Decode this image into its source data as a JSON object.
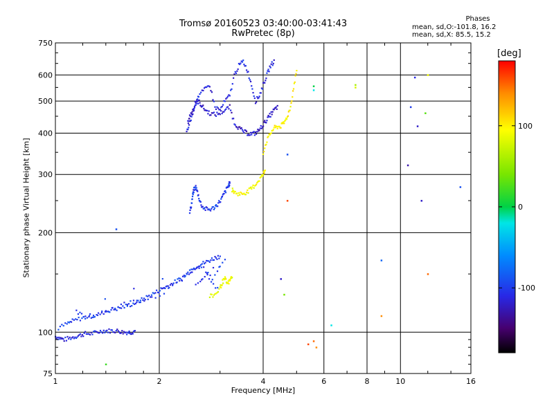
{
  "chart_data": {
    "type": "scatter",
    "title": "Tromsø 20160523 03:40:00-03:41:43",
    "subtitle": "RwPretec (8p)",
    "xlabel": "Frequency [MHz]",
    "ylabel": "Stationary phase Virtual Height [km]",
    "x_scale": "log2",
    "y_scale": "log",
    "xlim": [
      1,
      16
    ],
    "ylim": [
      75,
      750
    ],
    "x_ticks": [
      "1",
      "2",
      "4",
      "6",
      "8",
      "10",
      "16"
    ],
    "x_tick_values": [
      1,
      2,
      4,
      6,
      8,
      10,
      16
    ],
    "y_ticks": [
      "75",
      "100",
      "200",
      "300",
      "400",
      "500",
      "600",
      "750"
    ],
    "y_tick_values": [
      75,
      100,
      200,
      300,
      400,
      500,
      600,
      750
    ],
    "grid": true,
    "legend": {
      "title": "Phases",
      "lines": [
        "mean, sd,O:-101.8, 16.2",
        "mean, sd,X:  85.5, 15.2"
      ],
      "position": "top-right"
    },
    "colorbar": {
      "label": "[deg]",
      "ticks": [
        "100",
        "0",
        "-100"
      ],
      "tick_values": [
        100,
        0,
        -100
      ],
      "range": [
        -180,
        180
      ],
      "colormap": "rainbow"
    },
    "series": [
      {
        "trace": "low-E",
        "phase": -110,
        "x": [
          1.0,
          1.03,
          1.06,
          1.1,
          1.14,
          1.18,
          1.22,
          1.27,
          1.32,
          1.37,
          1.42,
          1.47,
          1.52,
          1.57,
          1.62,
          1.66,
          1.7
        ],
        "y": [
          97,
          96,
          95,
          96,
          97,
          98,
          99,
          99,
          100,
          101,
          101,
          101,
          101,
          100,
          100,
          100,
          101
        ]
      },
      {
        "trace": "E-scatter",
        "phase": -100,
        "x": [
          1.02,
          1.08,
          1.12,
          1.18,
          1.25,
          1.3,
          1.38,
          1.45,
          1.52,
          1.6,
          1.68,
          1.75,
          1.82,
          1.9,
          1.98,
          2.05,
          2.12,
          2.2,
          2.3,
          2.4,
          2.5,
          2.6,
          2.7,
          2.8,
          2.9,
          3.0,
          1.15,
          1.22,
          1.4,
          1.55,
          1.72,
          1.95,
          2.25,
          2.45,
          2.65,
          2.85,
          3.1,
          2.55,
          2.75,
          2.95
        ],
        "y": [
          103,
          106,
          108,
          110,
          112,
          112,
          115,
          117,
          118,
          120,
          122,
          124,
          127,
          130,
          133,
          136,
          138,
          141,
          145,
          150,
          155,
          160,
          162,
          165,
          168,
          170,
          115,
          111,
          116,
          121,
          125,
          128,
          140,
          152,
          158,
          145,
          165,
          140,
          150,
          135
        ]
      },
      {
        "trace": "F1-lower",
        "phase": -100,
        "x": [
          2.45,
          2.48,
          2.5,
          2.52,
          2.55,
          2.58,
          2.62,
          2.66,
          2.72,
          2.8,
          2.88,
          2.95,
          3.02,
          3.08,
          3.14,
          3.18,
          3.2
        ],
        "y": [
          230,
          245,
          260,
          270,
          275,
          265,
          250,
          240,
          236,
          235,
          238,
          244,
          252,
          262,
          272,
          279,
          283
        ]
      },
      {
        "trace": "F1-upper",
        "phase": -120,
        "x": [
          2.42,
          2.45,
          2.5,
          2.55,
          2.6,
          2.65,
          2.72,
          2.8,
          2.9,
          3.0,
          3.1,
          3.2,
          3.3,
          3.4,
          3.5,
          3.6,
          3.7,
          3.8,
          3.9,
          4.0,
          4.1,
          4.2,
          4.3,
          4.4
        ],
        "y": [
          430,
          450,
          470,
          490,
          500,
          485,
          470,
          460,
          455,
          460,
          470,
          480,
          430,
          415,
          405,
          400,
          398,
          400,
          410,
          425,
          440,
          455,
          470,
          480
        ]
      },
      {
        "trace": "F2-o",
        "phase": -110,
        "x": [
          2.4,
          2.45,
          2.5,
          2.55,
          2.6,
          2.7,
          2.8,
          2.9,
          3.0,
          3.1,
          3.2,
          3.3,
          3.4,
          3.5,
          3.6,
          3.7,
          3.8,
          3.9,
          4.0,
          4.1,
          4.2,
          4.3
        ],
        "y": [
          400,
          430,
          460,
          500,
          520,
          540,
          560,
          480,
          470,
          500,
          520,
          600,
          640,
          660,
          620,
          560,
          500,
          520,
          560,
          600,
          640,
          660
        ]
      },
      {
        "trace": "F-lower-x",
        "phase": 95,
        "x": [
          3.25,
          3.3,
          3.4,
          3.5,
          3.6,
          3.7,
          3.8,
          3.9,
          4.0,
          4.05
        ],
        "y": [
          270,
          265,
          262,
          263,
          266,
          272,
          280,
          290,
          300,
          310
        ]
      },
      {
        "trace": "F-upper-x",
        "phase": 100,
        "x": [
          4.0,
          4.1,
          4.2,
          4.3,
          4.4,
          4.5,
          4.6,
          4.7,
          4.8,
          4.9,
          5.0
        ],
        "y": [
          350,
          380,
          400,
          415,
          418,
          420,
          430,
          450,
          480,
          550,
          620
        ]
      },
      {
        "trace": "E-x",
        "phase": 90,
        "x": [
          2.8,
          2.9,
          3.0,
          3.05,
          3.1,
          3.15,
          3.2,
          3.25
        ],
        "y": [
          128,
          130,
          136,
          142,
          145,
          140,
          143,
          148
        ]
      },
      {
        "trace": "scattered",
        "phase": 0,
        "x": [
          1.5,
          1.4,
          5.4,
          5.6,
          5.7,
          6.3,
          7.4,
          7.4,
          8.8,
          8.8,
          10.5,
          10.7,
          11.0,
          11.2,
          11.5,
          11.8,
          12.0,
          12.0,
          14.9,
          5.6,
          5.6,
          4.7,
          4.5,
          4.6,
          4.7
        ],
        "y": [
          205,
          80,
          92,
          94,
          90,
          105,
          550,
          560,
          165,
          112,
          320,
          480,
          590,
          420,
          250,
          460,
          600,
          150,
          275,
          540,
          555,
          250,
          145,
          130,
          345
        ],
        "phases": [
          -90,
          20,
          160,
          150,
          140,
          -20,
          80,
          60,
          -80,
          140,
          -130,
          -100,
          -110,
          -120,
          -120,
          30,
          90,
          150,
          -90,
          -20,
          0,
          160,
          -120,
          40,
          -90
        ]
      }
    ]
  }
}
